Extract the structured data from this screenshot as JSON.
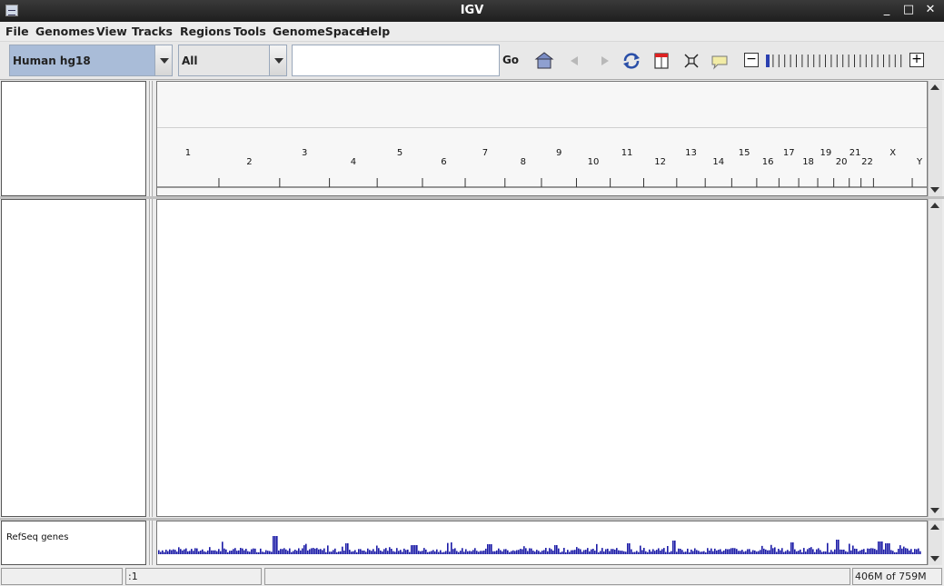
{
  "window": {
    "title": "IGV"
  },
  "menu": [
    "File",
    "Genomes",
    "View",
    "Tracks",
    "Regions",
    "Tools",
    "GenomeSpace",
    "Help"
  ],
  "toolbar": {
    "genome": "Human hg18",
    "chromosome": "All",
    "locus_value": "",
    "go_label": "Go",
    "zoom_minus": "−",
    "zoom_plus": "+",
    "zoom_level": 0
  },
  "ideogram": {
    "chromosomes_top": [
      "1",
      "3",
      "5",
      "7",
      "9",
      "11",
      "13",
      "15",
      "17",
      "19",
      "21",
      "X"
    ],
    "chromosomes_bottom": [
      "2",
      "4",
      "6",
      "8",
      "10",
      "12",
      "14",
      "16",
      "18",
      "20",
      "22",
      "Y"
    ]
  },
  "tracks": [
    {
      "name": "RefSeq genes"
    }
  ],
  "status": {
    "locus": ":1",
    "message": "",
    "memory": "406M of 759M"
  },
  "colors": {
    "gene_density": "#1a1aa6",
    "genome_combo_bg": "#a9bcd8"
  }
}
